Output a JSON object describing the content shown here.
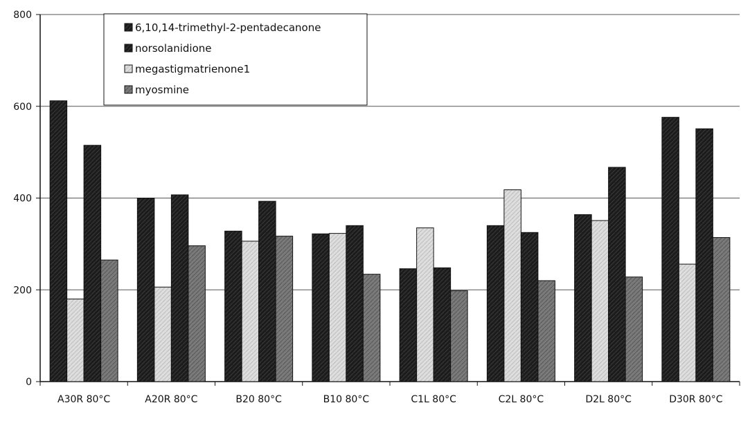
{
  "chart_data": {
    "type": "bar",
    "title": "",
    "xlabel": "",
    "ylabel": "",
    "ylim": [
      0,
      800
    ],
    "yticks": [
      0,
      200,
      400,
      600,
      800
    ],
    "grid": true,
    "legend_position": "top-left",
    "categories": [
      "A30R 80°C",
      "A20R 80°C",
      "B20 80°C",
      "B10 80°C",
      "C1L 80°C",
      "C2L 80°C",
      "D2L 80°C",
      "D30R 80°C"
    ],
    "series": [
      {
        "name": "6,10,14-trimethyl-2-pentadecanone",
        "values": [
          612,
          400,
          328,
          322,
          246,
          340,
          364,
          576
        ],
        "color": "#202020",
        "pattern": "dark"
      },
      {
        "name": "megastigmatrienone1",
        "values": [
          180,
          206,
          306,
          323,
          335,
          418,
          351,
          256
        ],
        "color": "#d7d7d7",
        "pattern": "light"
      },
      {
        "name": "norsolanidione",
        "values": [
          515,
          407,
          393,
          340,
          248,
          325,
          467,
          551
        ],
        "color": "#202020",
        "pattern": "dark"
      },
      {
        "name": "myosmine",
        "values": [
          265,
          296,
          317,
          234,
          198,
          220,
          228,
          314
        ],
        "color": "#767676",
        "pattern": "medium"
      }
    ],
    "legend_order": [
      "6,10,14-trimethyl-2-pentadecanone",
      "norsolanidione",
      "megastigmatrienone1",
      "myosmine"
    ]
  }
}
